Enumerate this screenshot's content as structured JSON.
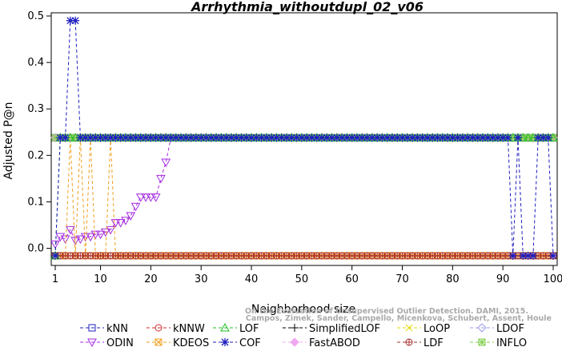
{
  "chart_data": {
    "type": "line",
    "title": "Arrhythmia_withoutdupl_02_v06",
    "xlabel": "Neighborhood size",
    "ylabel": "Adjusted P@n",
    "xlim": [
      1,
      100
    ],
    "ylim": [
      -0.03,
      0.5
    ],
    "xticks": [
      1,
      10,
      20,
      30,
      40,
      50,
      60,
      70,
      80,
      90,
      100
    ],
    "yticks": [
      0.0,
      0.1,
      0.2,
      0.3,
      0.4,
      0.5
    ],
    "grid": false,
    "legend_position": "bottom",
    "series": [
      {
        "name": "kNN",
        "color": "#1f1fbf",
        "marker": "square",
        "x": [
          1,
          2,
          100
        ],
        "y": [
          0.238,
          0.238,
          0.238
        ]
      },
      {
        "name": "kNNW",
        "color": "#d42a2a",
        "marker": "circle",
        "x": [
          1,
          2,
          3,
          4,
          5,
          6,
          7,
          8,
          9,
          10,
          11,
          12,
          13,
          100
        ],
        "y": [
          -0.016,
          -0.016,
          -0.016,
          -0.016,
          -0.016,
          -0.016,
          -0.016,
          -0.016,
          -0.016,
          -0.016,
          -0.016,
          -0.016,
          -0.016,
          -0.016
        ]
      },
      {
        "name": "LOF",
        "color": "#1fbf1f",
        "marker": "triangle-up",
        "x": [
          1,
          2,
          3,
          100
        ],
        "y": [
          -0.016,
          0.238,
          0.238,
          0.238
        ]
      },
      {
        "name": "SimplifiedLOF",
        "color": "#000000",
        "marker": "plus",
        "x": [
          1,
          100
        ],
        "y": [
          0.238,
          0.238
        ]
      },
      {
        "name": "LoOP",
        "color": "#e6d800",
        "marker": "cross",
        "x": [
          1,
          100
        ],
        "y": [
          0.238,
          0.238
        ]
      },
      {
        "name": "LDOF",
        "color": "#9a9ae6",
        "marker": "diamond",
        "x": [
          1,
          100
        ],
        "y": [
          0.238,
          0.238
        ]
      },
      {
        "name": "ODIN",
        "color": "#a52adf",
        "marker": "triangle-down",
        "x": [
          1,
          2,
          3,
          4,
          5,
          6,
          7,
          8,
          9,
          10,
          11,
          12,
          13,
          14,
          15,
          16,
          17,
          18,
          19,
          20,
          21,
          22,
          23,
          24
        ],
        "y": [
          0.009,
          0.025,
          0.02,
          0.04,
          0.017,
          0.02,
          0.025,
          0.025,
          0.03,
          0.03,
          0.035,
          0.04,
          0.055,
          0.055,
          0.06,
          0.07,
          0.09,
          0.11,
          0.11,
          0.11,
          0.11,
          0.15,
          0.185,
          0.238
        ]
      },
      {
        "name": "KDEOS",
        "color": "#f0a020",
        "marker": "square-x",
        "x": [
          1,
          2,
          3,
          4,
          5,
          6,
          7,
          8,
          9,
          10,
          11,
          12,
          13,
          100
        ],
        "y": [
          -0.016,
          -0.016,
          -0.016,
          0.238,
          -0.016,
          0.238,
          -0.016,
          0.238,
          -0.016,
          -0.016,
          -0.016,
          0.238,
          -0.016,
          -0.016
        ]
      },
      {
        "name": "COF",
        "color": "#1f1fbf",
        "marker": "asterisk",
        "x": [
          1,
          2,
          3,
          4,
          5,
          6,
          7,
          8,
          90,
          91,
          92,
          93,
          94,
          95,
          96,
          97,
          98,
          99,
          100
        ],
        "y": [
          -0.016,
          0.238,
          0.238,
          0.49,
          0.49,
          0.238,
          0.238,
          0.238,
          0.238,
          0.238,
          -0.016,
          0.238,
          -0.016,
          -0.016,
          -0.016,
          0.238,
          0.238,
          0.238,
          -0.016
        ]
      },
      {
        "name": "FastABOD",
        "color": "#f0a8f0",
        "marker": "diamond-filled",
        "x": [
          1,
          100
        ],
        "y": [
          0.238,
          0.238
        ]
      },
      {
        "name": "LDF",
        "color": "#a83232",
        "marker": "circle-plus",
        "x": [
          1,
          100
        ],
        "y": [
          -0.016,
          -0.016
        ]
      },
      {
        "name": "INFLO",
        "color": "#7fcf4a",
        "marker": "square-cross",
        "x": [
          1,
          100
        ],
        "y": [
          0.238,
          0.238
        ]
      }
    ],
    "credit": [
      "Campos, Zimek, Sander, Campello, Micenkova, Schubert, Assent, Houle",
      "On the Evaluation of Unsupervised Outlier Detection. DAMI, 2015."
    ]
  }
}
